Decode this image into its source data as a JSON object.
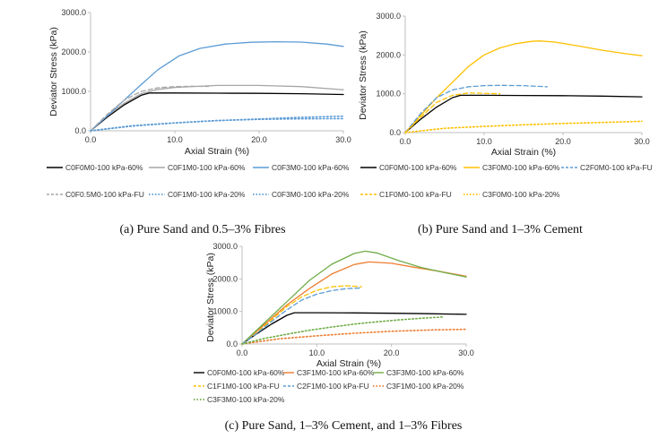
{
  "chart_data": [
    {
      "type": "line",
      "caption": "(a) Pure Sand and 0.5–3% Fibres",
      "xlabel": "Axial Strain (%)",
      "ylabel": "Deviator Stress (kPa)",
      "xlim": [
        0,
        30
      ],
      "ylim": [
        0,
        3000
      ],
      "xticks": [
        "0.0",
        "10.0",
        "20.0",
        "30.0"
      ],
      "yticks": [
        "0.0",
        "1000.0",
        "2000.0",
        "3000.0"
      ],
      "series": [
        {
          "name": "C0F0M0-100 kPa-60%",
          "color": "#000000",
          "dash": "solid",
          "x": [
            0,
            2,
            4,
            6,
            7,
            10,
            15,
            20,
            25,
            30
          ],
          "y": [
            0,
            350,
            660,
            900,
            960,
            960,
            955,
            950,
            940,
            920
          ]
        },
        {
          "name": "C0F1M0-100 kPa-60%",
          "color": "#a6a6a6",
          "dash": "solid",
          "x": [
            0,
            2,
            4,
            6,
            8,
            10,
            15,
            20,
            25,
            30
          ],
          "y": [
            0,
            380,
            700,
            940,
            1050,
            1100,
            1150,
            1150,
            1120,
            1040
          ]
        },
        {
          "name": "C0F3M0-100 kPa-60%",
          "color": "#5b9bd5",
          "dash": "solid",
          "x": [
            0,
            2,
            4,
            6,
            8,
            10.5,
            13,
            16,
            19,
            22,
            25,
            28,
            30
          ],
          "y": [
            0,
            380,
            780,
            1170,
            1550,
            1900,
            2090,
            2200,
            2245,
            2260,
            2250,
            2200,
            2140
          ]
        },
        {
          "name": "C0F0.5M0-100 kPa-FU",
          "color": "#a6a6a6",
          "dash": "dash",
          "x": [
            0,
            2,
            4,
            6,
            8,
            10,
            12,
            14
          ],
          "y": [
            0,
            420,
            780,
            1000,
            1090,
            1120,
            1130,
            1125
          ]
        },
        {
          "name": "C0F1M0-100 kPa-20%",
          "color": "#5b9bd5",
          "dash": "dot",
          "x": [
            0,
            5,
            10,
            15,
            20,
            25,
            30
          ],
          "y": [
            0,
            120,
            200,
            260,
            290,
            305,
            310
          ]
        },
        {
          "name": "C0F3M0-100 kPa-20%",
          "color": "#5b9bd5",
          "dash": "dot",
          "x": [
            0,
            5,
            10,
            15,
            20,
            25,
            30
          ],
          "y": [
            0,
            130,
            200,
            260,
            300,
            340,
            370
          ]
        }
      ]
    },
    {
      "type": "line",
      "caption": "(b) Pure Sand and 1–3% Cement",
      "xlabel": "Axial Strain (%)",
      "ylabel": "Deviator Stress (kPa)",
      "xlim": [
        0,
        30
      ],
      "ylim": [
        0,
        3000
      ],
      "xticks": [
        "0.0",
        "10.0",
        "20.0",
        "30.0"
      ],
      "yticks": [
        "0.0",
        "1000.0",
        "2000.0",
        "3000.0"
      ],
      "series": [
        {
          "name": "C0F0M0-100 kPa-60%",
          "color": "#000000",
          "dash": "solid",
          "x": [
            0,
            2,
            4,
            6,
            7,
            10,
            15,
            20,
            25,
            30
          ],
          "y": [
            0,
            350,
            660,
            900,
            960,
            960,
            955,
            950,
            940,
            920
          ]
        },
        {
          "name": "C3F0M0-100 kPa-60%",
          "color": "#ffc000",
          "dash": "solid",
          "x": [
            0,
            2,
            4,
            6,
            8,
            10,
            12,
            14,
            16,
            17,
            19,
            22,
            25,
            28,
            30
          ],
          "y": [
            0,
            450,
            900,
            1300,
            1700,
            2000,
            2180,
            2290,
            2350,
            2360,
            2330,
            2230,
            2120,
            2030,
            1980
          ]
        },
        {
          "name": "C2F0M0-100 kPa-FU",
          "color": "#5b9bd5",
          "dash": "dash",
          "x": [
            0,
            2,
            4,
            6,
            8,
            10,
            12,
            15,
            18
          ],
          "y": [
            0,
            500,
            900,
            1100,
            1180,
            1210,
            1215,
            1210,
            1180
          ]
        },
        {
          "name": "C1F0M0-100 kPa-FU",
          "color": "#ffc000",
          "dash": "dash",
          "x": [
            0,
            2,
            4,
            6,
            8,
            10,
            12
          ],
          "y": [
            0,
            400,
            780,
            960,
            1020,
            1010,
            1000
          ]
        },
        {
          "name": "C3F0M0-100 kPa-20%",
          "color": "#ffc000",
          "dash": "dot",
          "x": [
            0,
            5,
            10,
            15,
            20,
            25,
            30
          ],
          "y": [
            0,
            110,
            160,
            200,
            235,
            260,
            290
          ]
        }
      ]
    },
    {
      "type": "line",
      "caption": "(c) Pure Sand, 1–3% Cement, and 1–3% Fibres",
      "xlabel": "Axial Strain (%)",
      "ylabel": "Deviator Stress (kPa)",
      "xlim": [
        0,
        30
      ],
      "ylim": [
        0,
        3000
      ],
      "xticks": [
        "0.0",
        "10.0",
        "20.0",
        "30.0"
      ],
      "yticks": [
        "0.0",
        "1000.0",
        "2000.0",
        "3000.0"
      ],
      "series": [
        {
          "name": "C0F0M0-100 kPa-60%",
          "color": "#000000",
          "dash": "solid",
          "x": [
            0,
            2,
            4,
            6,
            7,
            10,
            15,
            20,
            25,
            30
          ],
          "y": [
            0,
            320,
            620,
            880,
            960,
            960,
            955,
            945,
            930,
            910
          ]
        },
        {
          "name": "C3F1M0-100 kPa-60%",
          "color": "#ed7d31",
          "dash": "solid",
          "x": [
            0,
            3,
            6,
            9,
            12,
            15,
            17,
            20,
            23,
            26,
            30
          ],
          "y": [
            0,
            600,
            1200,
            1700,
            2150,
            2440,
            2520,
            2480,
            2360,
            2250,
            2080
          ]
        },
        {
          "name": "C3F3M0-100 kPa-60%",
          "color": "#70ad47",
          "dash": "solid",
          "x": [
            0,
            3,
            6,
            9,
            12,
            15,
            16.5,
            18,
            21,
            24,
            27,
            30
          ],
          "y": [
            0,
            650,
            1300,
            1950,
            2450,
            2780,
            2850,
            2800,
            2560,
            2350,
            2200,
            2060
          ]
        },
        {
          "name": "C1F1M0-100 kPa-FU",
          "color": "#ffc000",
          "dash": "dash",
          "x": [
            0,
            2,
            4,
            6,
            8,
            10,
            12,
            14,
            16
          ],
          "y": [
            0,
            350,
            750,
            1150,
            1450,
            1650,
            1760,
            1790,
            1760
          ]
        },
        {
          "name": "C2F1M0-100 kPa-FU",
          "color": "#5b9bd5",
          "dash": "dash",
          "x": [
            0,
            2,
            4,
            6,
            8,
            10,
            12,
            14,
            16
          ],
          "y": [
            0,
            330,
            700,
            1050,
            1350,
            1530,
            1640,
            1700,
            1720
          ]
        },
        {
          "name": "C3F1M0-100 kPa-20%",
          "color": "#ed7d31",
          "dash": "dot",
          "x": [
            0,
            5,
            10,
            15,
            20,
            25,
            30
          ],
          "y": [
            0,
            160,
            250,
            330,
            390,
            430,
            450
          ]
        },
        {
          "name": "C3F3M0-100 kPa-20%",
          "color": "#70ad47",
          "dash": "dot",
          "x": [
            0,
            3,
            6,
            9,
            12,
            15,
            18,
            21,
            24,
            27
          ],
          "y": [
            0,
            170,
            300,
            420,
            520,
            610,
            680,
            740,
            790,
            830
          ]
        }
      ]
    }
  ]
}
